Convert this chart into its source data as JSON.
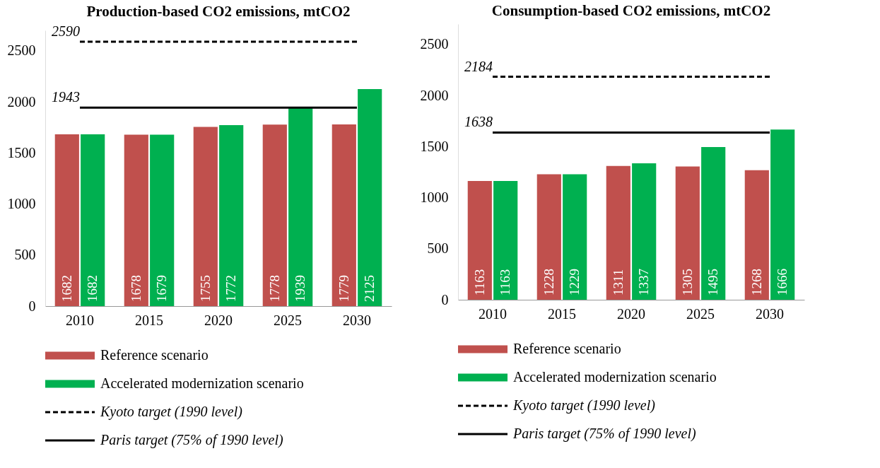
{
  "chart_data": [
    {
      "type": "bar",
      "title": "Production-based CO2 emissions, mtCO2",
      "categories": [
        "2010",
        "2015",
        "2020",
        "2025",
        "2030"
      ],
      "series": [
        {
          "name": "Reference scenario",
          "color": "#c0504d",
          "values": [
            1682,
            1678,
            1755,
            1778,
            1779
          ],
          "value_labels": [
            "1682",
            "1678",
            "1755",
            "1778",
            "1779"
          ]
        },
        {
          "name": "Accelerated modernization scenario",
          "color": "#00b050",
          "values": [
            1682,
            1679,
            1772,
            1939,
            2125
          ],
          "value_labels": [
            "1682",
            "1679",
            "1772",
            "1939",
            "2125"
          ]
        },
        {
          "name": "Kyoto target (1990 level)",
          "type": "line",
          "line_style": "dashed",
          "color": "#000000",
          "values": [
            2590,
            2590,
            2590,
            2590,
            2590
          ],
          "value_labels": [
            "2590",
            null,
            null,
            null,
            null
          ]
        },
        {
          "name": "Paris target (75% of 1990 level)",
          "type": "line",
          "line_style": "solid",
          "color": "#000000",
          "values": [
            1943,
            1943,
            1943,
            1943,
            1943
          ],
          "value_labels": [
            "1943",
            null,
            null,
            null,
            null
          ]
        }
      ],
      "ylim": [
        0,
        2700
      ],
      "yticks": [
        0,
        500,
        1000,
        1500,
        2000,
        2500
      ],
      "legend": "bottom",
      "grid": false
    },
    {
      "type": "bar",
      "title": "Consumption-based CO2 emissions, mtCO2",
      "categories": [
        "2010",
        "2015",
        "2020",
        "2025",
        "2030"
      ],
      "series": [
        {
          "name": "Reference scenario",
          "color": "#c0504d",
          "values": [
            1163,
            1228,
            1311,
            1305,
            1268
          ],
          "value_labels": [
            "1163",
            "1228",
            "1311",
            "1305",
            "1268"
          ]
        },
        {
          "name": "Accelerated modernization scenario",
          "color": "#00b050",
          "values": [
            1163,
            1229,
            1337,
            1495,
            1666
          ],
          "value_labels": [
            "1163",
            "1229",
            "1337",
            "1495",
            "1666"
          ]
        },
        {
          "name": "Kyoto target (1990 level)",
          "type": "line",
          "line_style": "dashed",
          "color": "#000000",
          "values": [
            2184,
            2184,
            2184,
            2184,
            2184
          ],
          "value_labels": [
            "2184",
            null,
            null,
            null,
            null
          ]
        },
        {
          "name": "Paris target (75% of 1990 level)",
          "type": "line",
          "line_style": "solid",
          "color": "#000000",
          "values": [
            1638,
            1638,
            1638,
            1638,
            1638
          ],
          "value_labels": [
            "1638",
            null,
            null,
            null,
            null
          ]
        }
      ],
      "ylim": [
        0,
        2700
      ],
      "yticks": [
        0,
        500,
        1000,
        1500,
        2000,
        2500
      ],
      "legend": "bottom",
      "grid": false
    }
  ]
}
